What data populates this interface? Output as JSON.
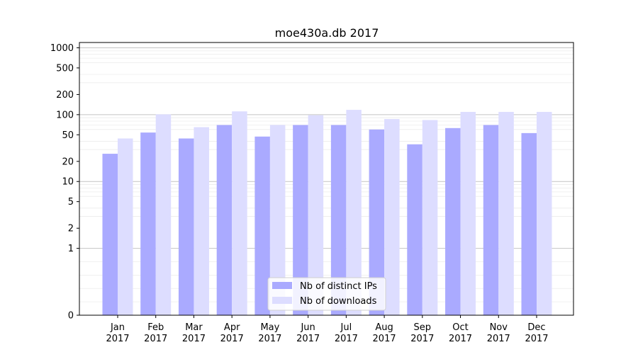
{
  "chart_data": {
    "type": "bar",
    "title": "moe430a.db 2017",
    "xlabel": "",
    "ylabel": "",
    "yscale": "symlog",
    "ylim": [
      0,
      1200
    ],
    "y_ticks": [
      0,
      1,
      2,
      5,
      10,
      20,
      50,
      100,
      200,
      500,
      1000
    ],
    "y_tick_labels": [
      "0",
      "1",
      "2",
      "5",
      "10",
      "20",
      "50",
      "100",
      "200",
      "500",
      "1000"
    ],
    "categories": [
      "Jan\n2017",
      "Feb\n2017",
      "Mar\n2017",
      "Apr\n2017",
      "May\n2017",
      "Jun\n2017",
      "Jul\n2017",
      "Aug\n2017",
      "Sep\n2017",
      "Oct\n2017",
      "Nov\n2017",
      "Dec\n2017"
    ],
    "series": [
      {
        "name": "Nb of distinct IPs",
        "color": "#aaaaff",
        "values": [
          26,
          54,
          44,
          70,
          47,
          70,
          70,
          60,
          36,
          63,
          70,
          53
        ]
      },
      {
        "name": "Nb of downloads",
        "color": "#ddddff",
        "values": [
          44,
          101,
          65,
          112,
          70,
          98,
          118,
          86,
          83,
          110,
          110,
          110
        ]
      }
    ],
    "legend_position": "lower-center",
    "grid": "y"
  }
}
